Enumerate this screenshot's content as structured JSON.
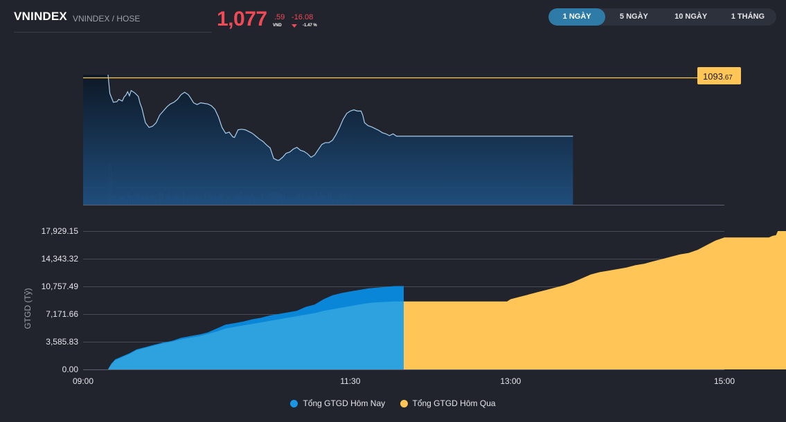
{
  "header": {
    "index_name": "VNINDEX",
    "index_sub": "VNINDEX / HOSE",
    "price_int": "1,077",
    "price_dec": ".59",
    "price_unit": "VND",
    "change": "-16.08",
    "change_pct": "-1.47 %"
  },
  "colors": {
    "down": "#ef4a55",
    "today": "#1a96e6",
    "yesterday": "#ffc556",
    "ref": "#ffc556"
  },
  "tabs": [
    {
      "label": "1 NGÀY",
      "active": true
    },
    {
      "label": "5 NGÀY",
      "active": false
    },
    {
      "label": "10 NGÀY",
      "active": false
    },
    {
      "label": "1 THÁNG",
      "active": false
    }
  ],
  "chart_data": [
    {
      "type": "line",
      "title": "",
      "reference_label_int": "1093",
      "reference_label_dec": ".67",
      "x_range_minutes": [
        0,
        360
      ],
      "y_range": [
        1072,
        1094.2
      ],
      "reference_value": 1093.67,
      "price_series": [
        [
          14,
          1094.2
        ],
        [
          15,
          1091
        ],
        [
          17,
          1089.5
        ],
        [
          19,
          1089.6
        ],
        [
          20,
          1090
        ],
        [
          22,
          1089.7
        ],
        [
          23,
          1090.4
        ],
        [
          24,
          1090.7
        ],
        [
          25,
          1091.3
        ],
        [
          26,
          1090.6
        ],
        [
          27,
          1091.5
        ],
        [
          29,
          1091.1
        ],
        [
          31,
          1090.5
        ],
        [
          32,
          1089.3
        ],
        [
          33,
          1088.5
        ],
        [
          34,
          1087.2
        ],
        [
          35,
          1086
        ],
        [
          37,
          1085.2
        ],
        [
          39,
          1085.4
        ],
        [
          41,
          1086
        ],
        [
          43,
          1087.3
        ],
        [
          45,
          1088
        ],
        [
          47,
          1088.7
        ],
        [
          49,
          1089.2
        ],
        [
          51,
          1089.5
        ],
        [
          53,
          1090
        ],
        [
          55,
          1090.8
        ],
        [
          57,
          1091.2
        ],
        [
          59,
          1090.8
        ],
        [
          60,
          1090.4
        ],
        [
          62,
          1089.4
        ],
        [
          64,
          1089.1
        ],
        [
          66,
          1089.4
        ],
        [
          68,
          1089.3
        ],
        [
          70,
          1089.2
        ],
        [
          72,
          1088.9
        ],
        [
          74,
          1088.3
        ],
        [
          76,
          1087
        ],
        [
          78,
          1085.2
        ],
        [
          80,
          1084.2
        ],
        [
          82,
          1084.4
        ],
        [
          84,
          1083.6
        ],
        [
          85,
          1083.5
        ],
        [
          87,
          1084.8
        ],
        [
          89,
          1084.9
        ],
        [
          91,
          1084.8
        ],
        [
          93,
          1084.5
        ],
        [
          95,
          1084.2
        ],
        [
          97,
          1083.7
        ],
        [
          99,
          1083.2
        ],
        [
          101,
          1082.8
        ],
        [
          103,
          1082.2
        ],
        [
          105,
          1081.7
        ],
        [
          107,
          1079.9
        ],
        [
          109,
          1079.6
        ],
        [
          110,
          1079.6
        ],
        [
          112,
          1080.1
        ],
        [
          114,
          1080.8
        ],
        [
          116,
          1081
        ],
        [
          118,
          1081.5
        ],
        [
          120,
          1081.8
        ],
        [
          122,
          1081.3
        ],
        [
          124,
          1081.1
        ],
        [
          126,
          1080.7
        ],
        [
          128,
          1080.1
        ],
        [
          130,
          1080.5
        ],
        [
          132,
          1081.4
        ],
        [
          134,
          1082.3
        ],
        [
          136,
          1082.6
        ],
        [
          138,
          1082.6
        ],
        [
          140,
          1083
        ],
        [
          142,
          1084
        ],
        [
          144,
          1085.2
        ],
        [
          146,
          1086.6
        ],
        [
          148,
          1087.6
        ],
        [
          150,
          1088
        ],
        [
          152,
          1088.2
        ],
        [
          154,
          1088
        ],
        [
          156,
          1088
        ],
        [
          157,
          1087.3
        ],
        [
          158,
          1086
        ],
        [
          160,
          1085.5
        ],
        [
          162,
          1085.3
        ],
        [
          164,
          1085
        ],
        [
          166,
          1084.7
        ],
        [
          168,
          1084.3
        ],
        [
          170,
          1084.1
        ],
        [
          172,
          1083.8
        ],
        [
          174,
          1084.1
        ],
        [
          176,
          1083.7
        ],
        [
          178,
          1083.7
        ],
        [
          180,
          1083.7
        ],
        [
          195,
          1083.7
        ],
        [
          210,
          1083.7
        ],
        [
          220,
          1083.7
        ],
        [
          232,
          1083.7
        ],
        [
          240,
          1083.7
        ],
        [
          255,
          1083.7
        ],
        [
          268,
          1083.7
        ],
        [
          270,
          1083.7
        ],
        [
          275,
          1083.7
        ]
      ]
    },
    {
      "type": "area",
      "title": "",
      "ylabel": "GTGD (Tỷ)",
      "x_ticks": [
        "09:00",
        "11:30",
        "13:00",
        "15:00"
      ],
      "y_ticks": [
        "17,929.15",
        "14,343.32",
        "10,757.49",
        "7,171.66",
        "3,585.83",
        "0.00"
      ],
      "ylim": [
        0,
        17929.15
      ],
      "legend": "bottom-center",
      "series": [
        {
          "name": "Tổng GTGD Hôm Nay",
          "points": [
            [
              14,
              0
            ],
            [
              16,
              800
            ],
            [
              18,
              1300
            ],
            [
              22,
              1700
            ],
            [
              26,
              2100
            ],
            [
              30,
              2600
            ],
            [
              35,
              2900
            ],
            [
              40,
              3200
            ],
            [
              45,
              3500
            ],
            [
              50,
              3700
            ],
            [
              55,
              4100
            ],
            [
              60,
              4300
            ],
            [
              65,
              4500
            ],
            [
              70,
              4800
            ],
            [
              75,
              5300
            ],
            [
              80,
              5800
            ],
            [
              85,
              6000
            ],
            [
              90,
              6200
            ],
            [
              95,
              6500
            ],
            [
              100,
              6700
            ],
            [
              105,
              7000
            ],
            [
              110,
              7200
            ],
            [
              115,
              7400
            ],
            [
              120,
              7600
            ],
            [
              125,
              8100
            ],
            [
              130,
              8400
            ],
            [
              135,
              9100
            ],
            [
              140,
              9600
            ],
            [
              145,
              9900
            ],
            [
              150,
              10100
            ],
            [
              155,
              10300
            ],
            [
              160,
              10500
            ],
            [
              165,
              10600
            ],
            [
              170,
              10700
            ],
            [
              175,
              10800
            ],
            [
              180,
              10800
            ]
          ],
          "points_lower": [
            [
              14,
              0
            ],
            [
              16,
              700
            ],
            [
              18,
              1200
            ],
            [
              22,
              1600
            ],
            [
              26,
              2000
            ],
            [
              30,
              2500
            ],
            [
              35,
              2800
            ],
            [
              40,
              3100
            ],
            [
              45,
              3400
            ],
            [
              50,
              3600
            ],
            [
              55,
              3900
            ],
            [
              60,
              4100
            ],
            [
              65,
              4300
            ],
            [
              70,
              4600
            ],
            [
              75,
              4900
            ],
            [
              80,
              5300
            ],
            [
              85,
              5500
            ],
            [
              90,
              5700
            ],
            [
              95,
              5900
            ],
            [
              100,
              6100
            ],
            [
              105,
              6300
            ],
            [
              110,
              6500
            ],
            [
              115,
              6700
            ],
            [
              120,
              6900
            ],
            [
              125,
              7100
            ],
            [
              130,
              7300
            ],
            [
              135,
              7600
            ],
            [
              140,
              7800
            ],
            [
              145,
              8000
            ],
            [
              150,
              8200
            ],
            [
              155,
              8400
            ],
            [
              160,
              8600
            ],
            [
              165,
              8700
            ],
            [
              170,
              8750
            ],
            [
              175,
              8800
            ],
            [
              180,
              8800
            ]
          ]
        },
        {
          "name": "Tổng GTGD Hôm Qua",
          "points": [
            [
              14,
              0
            ],
            [
              16,
              800
            ],
            [
              18,
              1100
            ],
            [
              20,
              1300
            ],
            [
              24,
              1600
            ],
            [
              28,
              2000
            ],
            [
              32,
              2400
            ],
            [
              36,
              2700
            ],
            [
              40,
              3100
            ],
            [
              45,
              3400
            ],
            [
              50,
              3700
            ],
            [
              55,
              4000
            ],
            [
              60,
              4300
            ],
            [
              65,
              4500
            ],
            [
              70,
              4700
            ],
            [
              75,
              5000
            ],
            [
              80,
              5300
            ],
            [
              85,
              5500
            ],
            [
              90,
              5700
            ],
            [
              95,
              6000
            ],
            [
              100,
              6200
            ],
            [
              105,
              6400
            ],
            [
              110,
              6600
            ],
            [
              115,
              6800
            ],
            [
              120,
              7000
            ],
            [
              125,
              7200
            ],
            [
              130,
              7400
            ],
            [
              135,
              7600
            ],
            [
              140,
              7800
            ],
            [
              145,
              8000
            ],
            [
              150,
              8200
            ],
            [
              155,
              8400
            ],
            [
              160,
              8600
            ],
            [
              165,
              8700
            ],
            [
              170,
              8750
            ],
            [
              175,
              8800
            ],
            [
              180,
              8800
            ],
            [
              190,
              8800
            ],
            [
              200,
              8800
            ],
            [
              210,
              8800
            ],
            [
              225,
              8800
            ],
            [
              238,
              8800
            ],
            [
              240,
              9100
            ],
            [
              245,
              9400
            ],
            [
              250,
              9700
            ],
            [
              255,
              10000
            ],
            [
              260,
              10300
            ],
            [
              265,
              10600
            ],
            [
              270,
              10900
            ],
            [
              275,
              11300
            ],
            [
              280,
              11800
            ],
            [
              285,
              12300
            ],
            [
              290,
              12600
            ],
            [
              295,
              12800
            ],
            [
              300,
              13000
            ],
            [
              305,
              13200
            ],
            [
              310,
              13500
            ],
            [
              315,
              13700
            ],
            [
              320,
              14000
            ],
            [
              325,
              14300
            ],
            [
              330,
              14600
            ],
            [
              335,
              14900
            ],
            [
              340,
              15100
            ],
            [
              345,
              15500
            ],
            [
              350,
              16100
            ],
            [
              355,
              16700
            ],
            [
              360,
              17100
            ],
            [
              363,
              17100
            ],
            [
              370,
              17100
            ],
            [
              380,
              17100
            ],
            [
              385,
              17100
            ],
            [
              387,
              17300
            ],
            [
              389,
              17400
            ],
            [
              390,
              17929.15
            ],
            [
              400,
              17929.15
            ]
          ]
        }
      ]
    }
  ]
}
